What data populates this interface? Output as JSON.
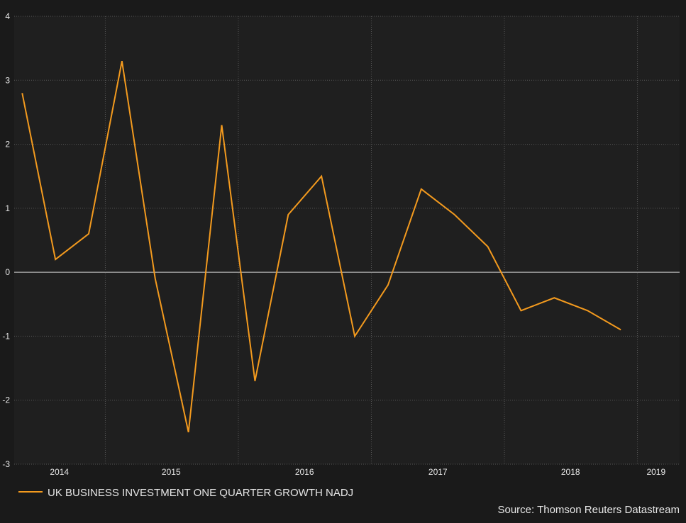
{
  "chart_data": {
    "type": "line",
    "x": [
      2013.375,
      2013.625,
      2013.875,
      2014.125,
      2014.375,
      2014.625,
      2014.875,
      2015.125,
      2015.375,
      2015.625,
      2015.875,
      2016.125,
      2016.375,
      2016.625,
      2016.875,
      2017.125,
      2017.375,
      2017.625,
      2017.875
    ],
    "series": [
      {
        "name": "UK BUSINESS INVESTMENT ONE QUARTER GROWTH NADJ",
        "color": "#f39a1e",
        "values": [
          2.8,
          0.2,
          0.6,
          3.3,
          -0.1,
          -2.5,
          2.3,
          -1.7,
          0.9,
          1.5,
          -1.0,
          -0.2,
          1.3,
          0.9,
          0.4,
          -0.6,
          -0.4,
          -0.6,
          -0.9
        ]
      }
    ],
    "xlim": [
      2013.315,
      2018.317
    ],
    "xticks": [
      {
        "value": 2013.655,
        "label": "2014"
      },
      {
        "value": 2014.495,
        "label": "2015"
      },
      {
        "value": 2015.497,
        "label": "2016"
      },
      {
        "value": 2016.5,
        "label": "2017"
      },
      {
        "value": 2017.497,
        "label": "2018"
      },
      {
        "value": 2018.14,
        "label": "2019"
      }
    ],
    "xgrid": [
      2014,
      2015,
      2016,
      2017,
      2018
    ],
    "ylim": [
      -3,
      4
    ],
    "yticks": [
      -3,
      -2,
      -1,
      0,
      1,
      2,
      3,
      4
    ],
    "grid": true,
    "source": "Source: Thomson Reuters Datastream"
  }
}
